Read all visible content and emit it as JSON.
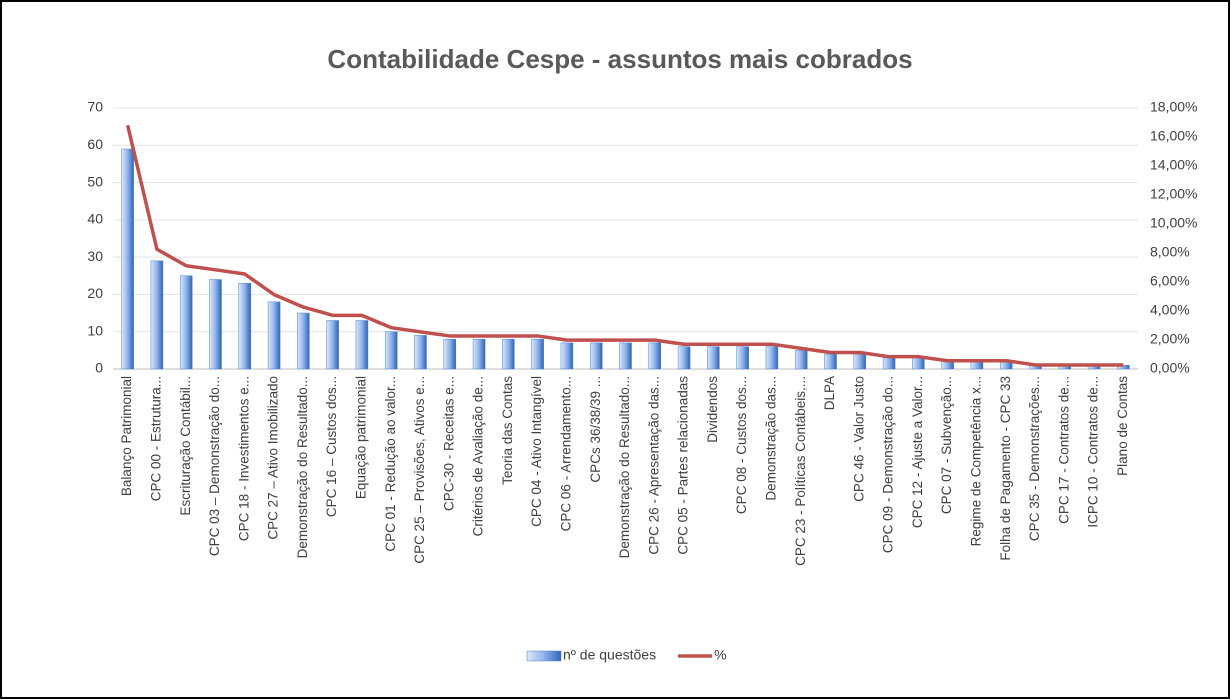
{
  "chart_data": {
    "type": "bar_line",
    "title": "Contabilidade Cespe - assuntos mais cobrados",
    "categories": [
      "Balanço Patrimonial",
      "CPC 00 - Estrutura...",
      "Escrituração Contábil...",
      "CPC 03 – Demonstração do...",
      "CPC 18 - Investimentos e...",
      "CPC 27 – Ativo Imobilizado",
      "Demonstração do Resultado...",
      "CPC 16 – Custos dos...",
      "Equação patrimonial",
      "CPC 01 - Redução ao valor...",
      "CPC 25 – Provisões, Ativos e...",
      "CPC-30 - Receitas e...",
      "Critérios de Avaliação de...",
      "Teoria das Contas",
      "CPC 04 - Ativo Intangível",
      "CPC 06 - Arrendamento...",
      "CPCs 36/38/39 ...",
      "Demonstração do Resultado...",
      "CPC 26 - Apresentação das...",
      "CPC 05 - Partes relacionadas",
      "Dividendos",
      "CPC 08 - Custos dos...",
      "Demonstração das...",
      "CPC 23 - Políticas Contábeis,...",
      "DLPA",
      "CPC 46 - Valor Justo",
      "CPC 09 - Demonstração do...",
      "CPC 12 - Ajuste a Valor...",
      "CPC 07 - Subvenção...",
      "Regime de Competência x...",
      "Folha de Pagamento - CPC 33",
      "CPC 35 - Demonstrações...",
      "CPC 17 - Contratos de...",
      "ICPC 10 - Contratos de...",
      "Plano de Contas"
    ],
    "series": [
      {
        "name": "nº de questões",
        "type": "bar",
        "color": "#4a7fd0",
        "values": [
          59,
          29,
          25,
          24,
          23,
          18,
          15,
          13,
          13,
          10,
          9,
          8,
          8,
          8,
          8,
          7,
          7,
          7,
          7,
          6,
          6,
          6,
          6,
          5,
          4,
          4,
          3,
          3,
          2,
          2,
          2,
          1,
          1,
          1,
          1
        ]
      },
      {
        "name": "%",
        "type": "line",
        "axis": "y2",
        "color": "#c0504d",
        "values": [
          16.81,
          8.26,
          7.12,
          6.84,
          6.55,
          5.13,
          4.27,
          3.7,
          3.7,
          2.85,
          2.56,
          2.28,
          2.28,
          2.28,
          2.28,
          1.99,
          1.99,
          1.99,
          1.99,
          1.71,
          1.71,
          1.71,
          1.71,
          1.42,
          1.14,
          1.14,
          0.85,
          0.85,
          0.57,
          0.57,
          0.57,
          0.28,
          0.28,
          0.28,
          0.28
        ]
      }
    ],
    "ylim": [
      0,
      70
    ],
    "yticks": [
      0,
      10,
      20,
      30,
      40,
      50,
      60,
      70
    ],
    "y2lim": [
      0,
      18
    ],
    "y2ticks": [
      {
        "value": 0,
        "label": "0,00%"
      },
      {
        "value": 2,
        "label": "2,00%"
      },
      {
        "value": 4,
        "label": "4,00%"
      },
      {
        "value": 6,
        "label": "6,00%"
      },
      {
        "value": 8,
        "label": "8,00%"
      },
      {
        "value": 10,
        "label": "10,00%"
      },
      {
        "value": 12,
        "label": "12,00%"
      },
      {
        "value": 14,
        "label": "14,00%"
      },
      {
        "value": 16,
        "label": "16,00%"
      },
      {
        "value": 18,
        "label": "18,00%"
      }
    ],
    "grid": true,
    "legend": "bottom"
  }
}
